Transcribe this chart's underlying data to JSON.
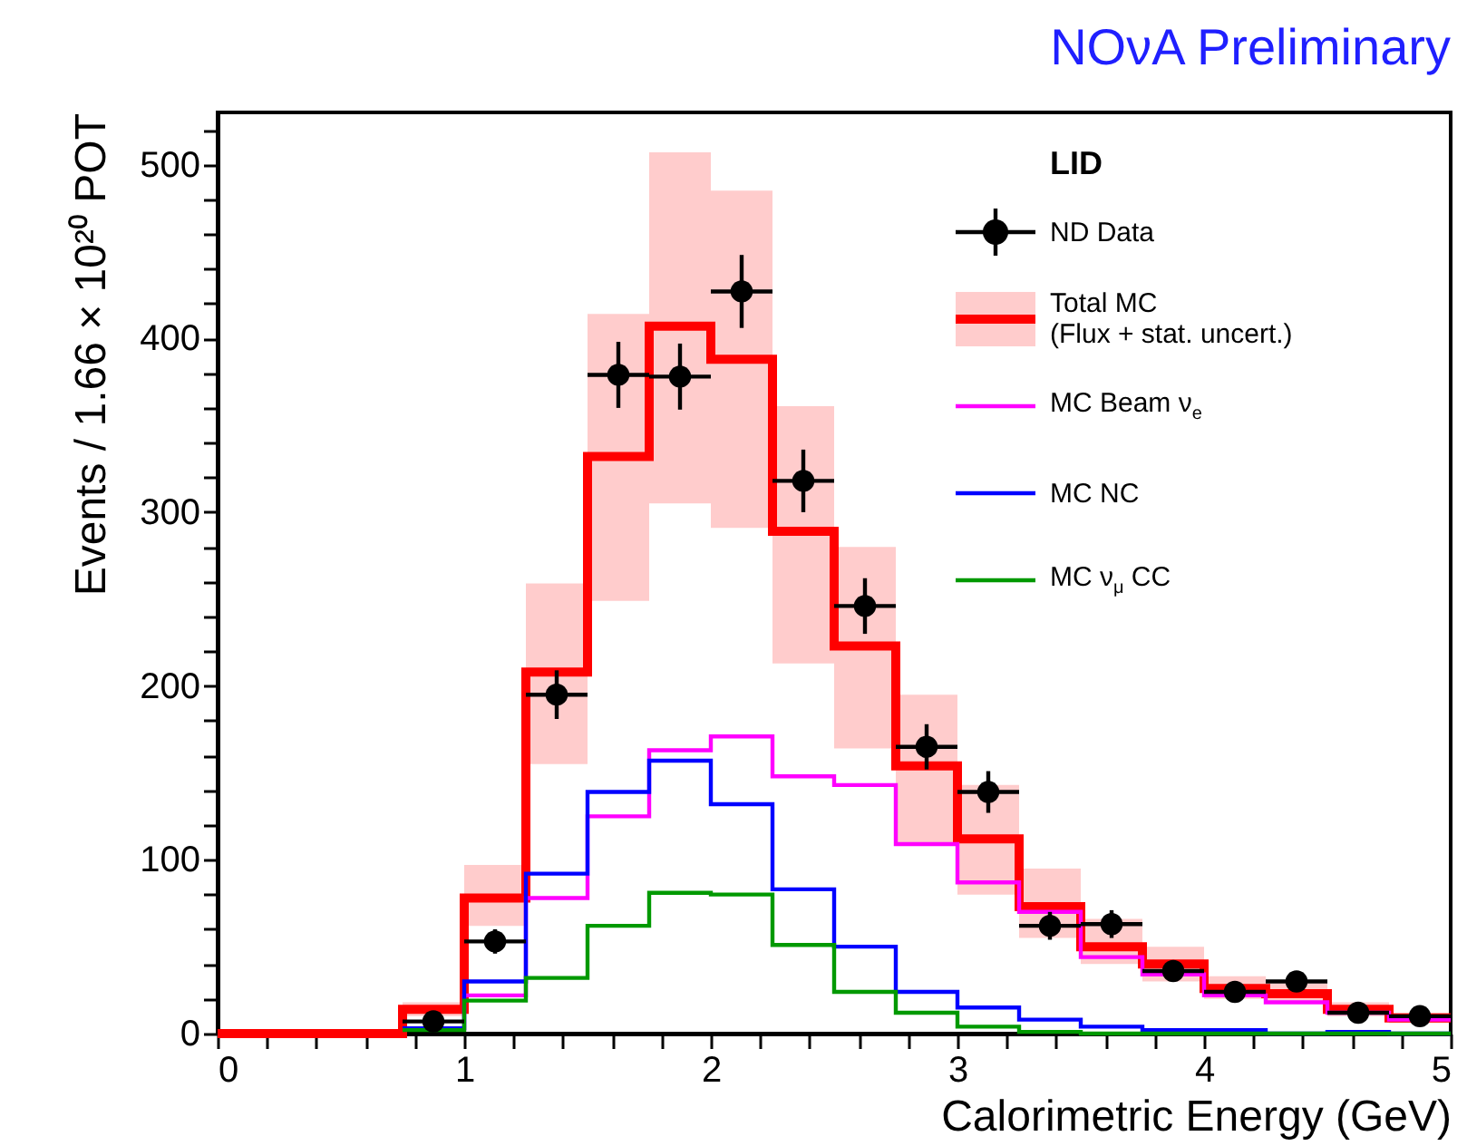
{
  "chart_data": {
    "type": "step",
    "title": "NOνA Preliminary",
    "xlabel": "Calorimetric Energy (GeV)",
    "ylabel": "Events / 1.66 × 10²⁰ POT",
    "legend_title": "LID",
    "legend": "top right",
    "grid": false,
    "x": [
      0,
      0.25,
      0.5,
      0.75,
      1,
      1.25,
      1.5,
      1.75,
      2,
      2.25,
      2.5,
      2.75,
      3,
      3.25,
      3.5,
      3.75,
      4,
      4.25,
      4.5,
      4.75,
      5
    ],
    "xlim": [
      0,
      5
    ],
    "ylim": [
      0,
      530
    ],
    "xticks": [
      0,
      {
        "value": 0.2,
        "label": null
      },
      {
        "value": 0.4,
        "label": null
      },
      {
        "value": 0.6,
        "label": null
      },
      {
        "value": 0.8,
        "label": null
      },
      1,
      {
        "value": 1.2,
        "label": null
      },
      {
        "value": 1.4,
        "label": null
      },
      {
        "value": 1.6,
        "label": null
      },
      {
        "value": 1.8,
        "label": null
      },
      2,
      {
        "value": 2.2,
        "label": null
      },
      {
        "value": 2.4,
        "label": null
      },
      {
        "value": 2.6,
        "label": null
      },
      {
        "value": 2.8,
        "label": null
      },
      3,
      {
        "value": 3.2,
        "label": null
      },
      {
        "value": 3.4,
        "label": null
      },
      {
        "value": 3.6,
        "label": null
      },
      {
        "value": 3.8,
        "label": null
      },
      4,
      {
        "value": 4.2,
        "label": null
      },
      {
        "value": 4.4,
        "label": null
      },
      {
        "value": 4.6,
        "label": null
      },
      {
        "value": 4.8,
        "label": null
      },
      5
    ],
    "yticks": [
      0,
      {
        "value": 20,
        "label": null
      },
      {
        "value": 40,
        "label": null
      },
      {
        "value": 60,
        "label": null
      },
      {
        "value": 80,
        "label": null
      },
      100,
      {
        "value": 120,
        "label": null
      },
      {
        "value": 140,
        "label": null
      },
      {
        "value": 160,
        "label": null
      },
      {
        "value": 180,
        "label": null
      },
      200,
      {
        "value": 220,
        "label": null
      },
      {
        "value": 240,
        "label": null
      },
      {
        "value": 260,
        "label": null
      },
      {
        "value": 280,
        "label": null
      },
      300,
      {
        "value": 320,
        "label": null
      },
      {
        "value": 340,
        "label": null
      },
      {
        "value": 360,
        "label": null
      },
      {
        "value": 380,
        "label": null
      },
      400,
      {
        "value": 420,
        "label": null
      },
      {
        "value": 440,
        "label": null
      },
      {
        "value": 460,
        "label": null
      },
      {
        "value": 480,
        "label": null
      },
      500,
      {
        "value": 520,
        "label": null
      }
    ],
    "series": [
      {
        "name": "ND Data",
        "type": "scatter",
        "color": "#000000",
        "marker": "circle",
        "x": [
          0.875,
          1.125,
          1.375,
          1.625,
          1.875,
          2.125,
          2.375,
          2.625,
          2.875,
          3.125,
          3.375,
          3.625,
          3.875,
          4.125,
          4.375,
          4.625,
          4.875
        ],
        "values": [
          7,
          53,
          195,
          379,
          378,
          427,
          318,
          246,
          165,
          139,
          62,
          63,
          36,
          24,
          30,
          12,
          10
        ],
        "errors": [
          3,
          7,
          14,
          19,
          19,
          21,
          18,
          16,
          13,
          12,
          8,
          8,
          6,
          5,
          5,
          4,
          3
        ],
        "xerrors": [
          0.125,
          0.125,
          0.125,
          0.125,
          0.125,
          0.125,
          0.125,
          0.125,
          0.125,
          0.125,
          0.125,
          0.125,
          0.125,
          0.125,
          0.125,
          0.125,
          0.125
        ]
      },
      {
        "name": "Total MC\n(Flux + stat. uncert.)",
        "color": "#ff0000",
        "values": [
          0,
          0,
          0,
          14,
          78,
          208,
          332,
          407,
          388,
          289,
          223,
          154,
          112,
          73,
          50,
          40,
          26,
          23,
          14,
          9,
          9
        ],
        "lower": [
          null,
          null,
          null,
          10,
          62,
          155,
          249,
          305,
          291,
          213,
          164,
          110,
          80,
          55,
          40,
          30,
          20,
          18,
          10,
          6,
          6
        ],
        "upper": [
          null,
          null,
          null,
          18,
          97,
          259,
          414,
          507,
          485,
          361,
          280,
          195,
          143,
          95,
          66,
          50,
          33,
          29,
          18,
          12,
          12
        ]
      },
      {
        "name": "MC Beam ν$_{e}$",
        "color": "#ff00ff",
        "values": [
          null,
          null,
          null,
          3,
          22,
          78,
          125,
          163,
          171,
          148,
          143,
          109,
          87,
          70,
          44,
          34,
          22,
          18,
          12,
          8,
          8
        ]
      },
      {
        "name": "MC NC",
        "color": "#0000ff",
        "values": [
          null,
          null,
          null,
          3,
          30,
          92,
          139,
          157,
          132,
          83,
          50,
          24,
          15,
          8,
          4,
          2,
          2,
          0,
          1,
          0,
          0
        ]
      },
      {
        "name": "MC ν$_{μ}$ CC",
        "color": "#009900",
        "values": [
          null,
          null,
          null,
          2,
          19,
          32,
          62,
          81,
          80,
          51,
          24,
          12,
          4,
          1,
          0,
          0,
          0,
          0,
          0,
          0,
          0
        ]
      }
    ]
  }
}
